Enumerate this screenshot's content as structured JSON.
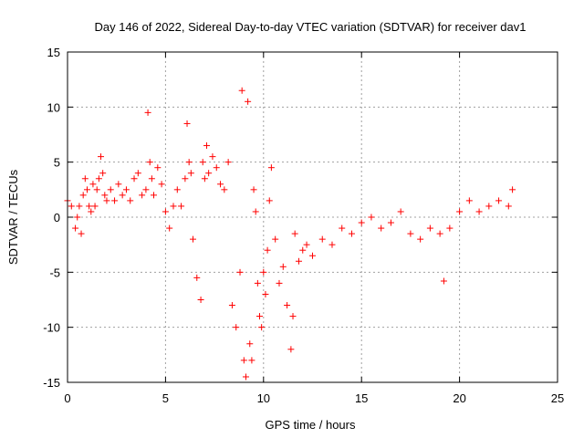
{
  "chart_data": {
    "type": "scatter",
    "title": "Day 146 of 2022, Sidereal Day-to-day VTEC variation (SDTVAR) for receiver dav1",
    "xlabel": "GPS time / hours",
    "ylabel": "SDTVAR / TECUs",
    "xlim": [
      0,
      25
    ],
    "ylim": [
      -15,
      15
    ],
    "xticks": [
      0,
      5,
      10,
      15,
      20,
      25
    ],
    "yticks": [
      -15,
      -10,
      -5,
      0,
      5,
      10,
      15
    ],
    "xtick_labels": [
      "0",
      "5",
      "10",
      "15",
      "20",
      "25"
    ],
    "ytick_labels": [
      "-15",
      "-10",
      "-5",
      "0",
      "5",
      "10",
      "15"
    ],
    "grid": true,
    "marker": "+",
    "color": "#ff0000",
    "series": [
      {
        "name": "dav1",
        "x": [
          0.0,
          0.2,
          0.4,
          0.5,
          0.6,
          0.7,
          0.8,
          0.9,
          1.0,
          1.1,
          1.2,
          1.3,
          1.4,
          1.5,
          1.6,
          1.7,
          1.8,
          1.9,
          2.0,
          2.2,
          2.4,
          2.6,
          2.8,
          3.0,
          3.2,
          3.4,
          3.6,
          3.8,
          4.0,
          4.1,
          4.2,
          4.3,
          4.4,
          4.6,
          4.8,
          5.0,
          5.2,
          5.4,
          5.6,
          5.8,
          6.0,
          6.1,
          6.2,
          6.3,
          6.4,
          6.6,
          6.8,
          6.9,
          7.0,
          7.1,
          7.2,
          7.4,
          7.6,
          7.8,
          8.0,
          8.2,
          8.4,
          8.6,
          8.8,
          8.9,
          9.0,
          9.1,
          9.2,
          9.3,
          9.4,
          9.5,
          9.6,
          9.7,
          9.8,
          9.9,
          10.0,
          10.1,
          10.2,
          10.3,
          10.4,
          10.6,
          10.8,
          11.0,
          11.2,
          11.4,
          11.5,
          11.6,
          11.8,
          12.0,
          12.2,
          12.5,
          13.0,
          13.5,
          14.0,
          14.5,
          15.0,
          15.5,
          16.0,
          16.5,
          17.0,
          17.5,
          18.0,
          18.5,
          19.0,
          19.2,
          19.5,
          20.0,
          20.5,
          21.0,
          21.5,
          22.0,
          22.5,
          22.7
        ],
        "y": [
          1.5,
          1.0,
          -1.0,
          0.0,
          1.0,
          -1.5,
          2.0,
          3.5,
          2.5,
          1.0,
          0.5,
          3.0,
          1.0,
          2.5,
          3.5,
          5.5,
          4.0,
          2.0,
          1.5,
          2.5,
          1.5,
          3.0,
          2.0,
          2.5,
          1.5,
          3.5,
          4.0,
          2.0,
          2.5,
          9.5,
          5.0,
          3.5,
          2.0,
          4.5,
          3.0,
          0.5,
          -1.0,
          1.0,
          2.5,
          1.0,
          3.5,
          8.5,
          5.0,
          4.0,
          -2.0,
          -5.5,
          -7.5,
          5.0,
          3.5,
          6.5,
          4.0,
          5.5,
          4.5,
          3.0,
          2.5,
          5.0,
          -8.0,
          -10.0,
          -5.0,
          11.5,
          -13.0,
          -14.5,
          10.5,
          -11.5,
          -13.0,
          2.5,
          0.5,
          -6.0,
          -9.0,
          -10.0,
          -5.0,
          -7.0,
          -3.0,
          1.5,
          4.5,
          -2.0,
          -6.0,
          -4.5,
          -8.0,
          -12.0,
          -9.0,
          -1.5,
          -4.0,
          -3.0,
          -2.5,
          -3.5,
          -2.0,
          -2.5,
          -1.0,
          -1.5,
          -0.5,
          0.0,
          -1.0,
          -0.5,
          0.5,
          -1.5,
          -2.0,
          -1.0,
          -1.5,
          -5.8,
          -1.0,
          0.5,
          1.5,
          0.5,
          1.0,
          1.5,
          1.0,
          2.5
        ]
      }
    ]
  }
}
